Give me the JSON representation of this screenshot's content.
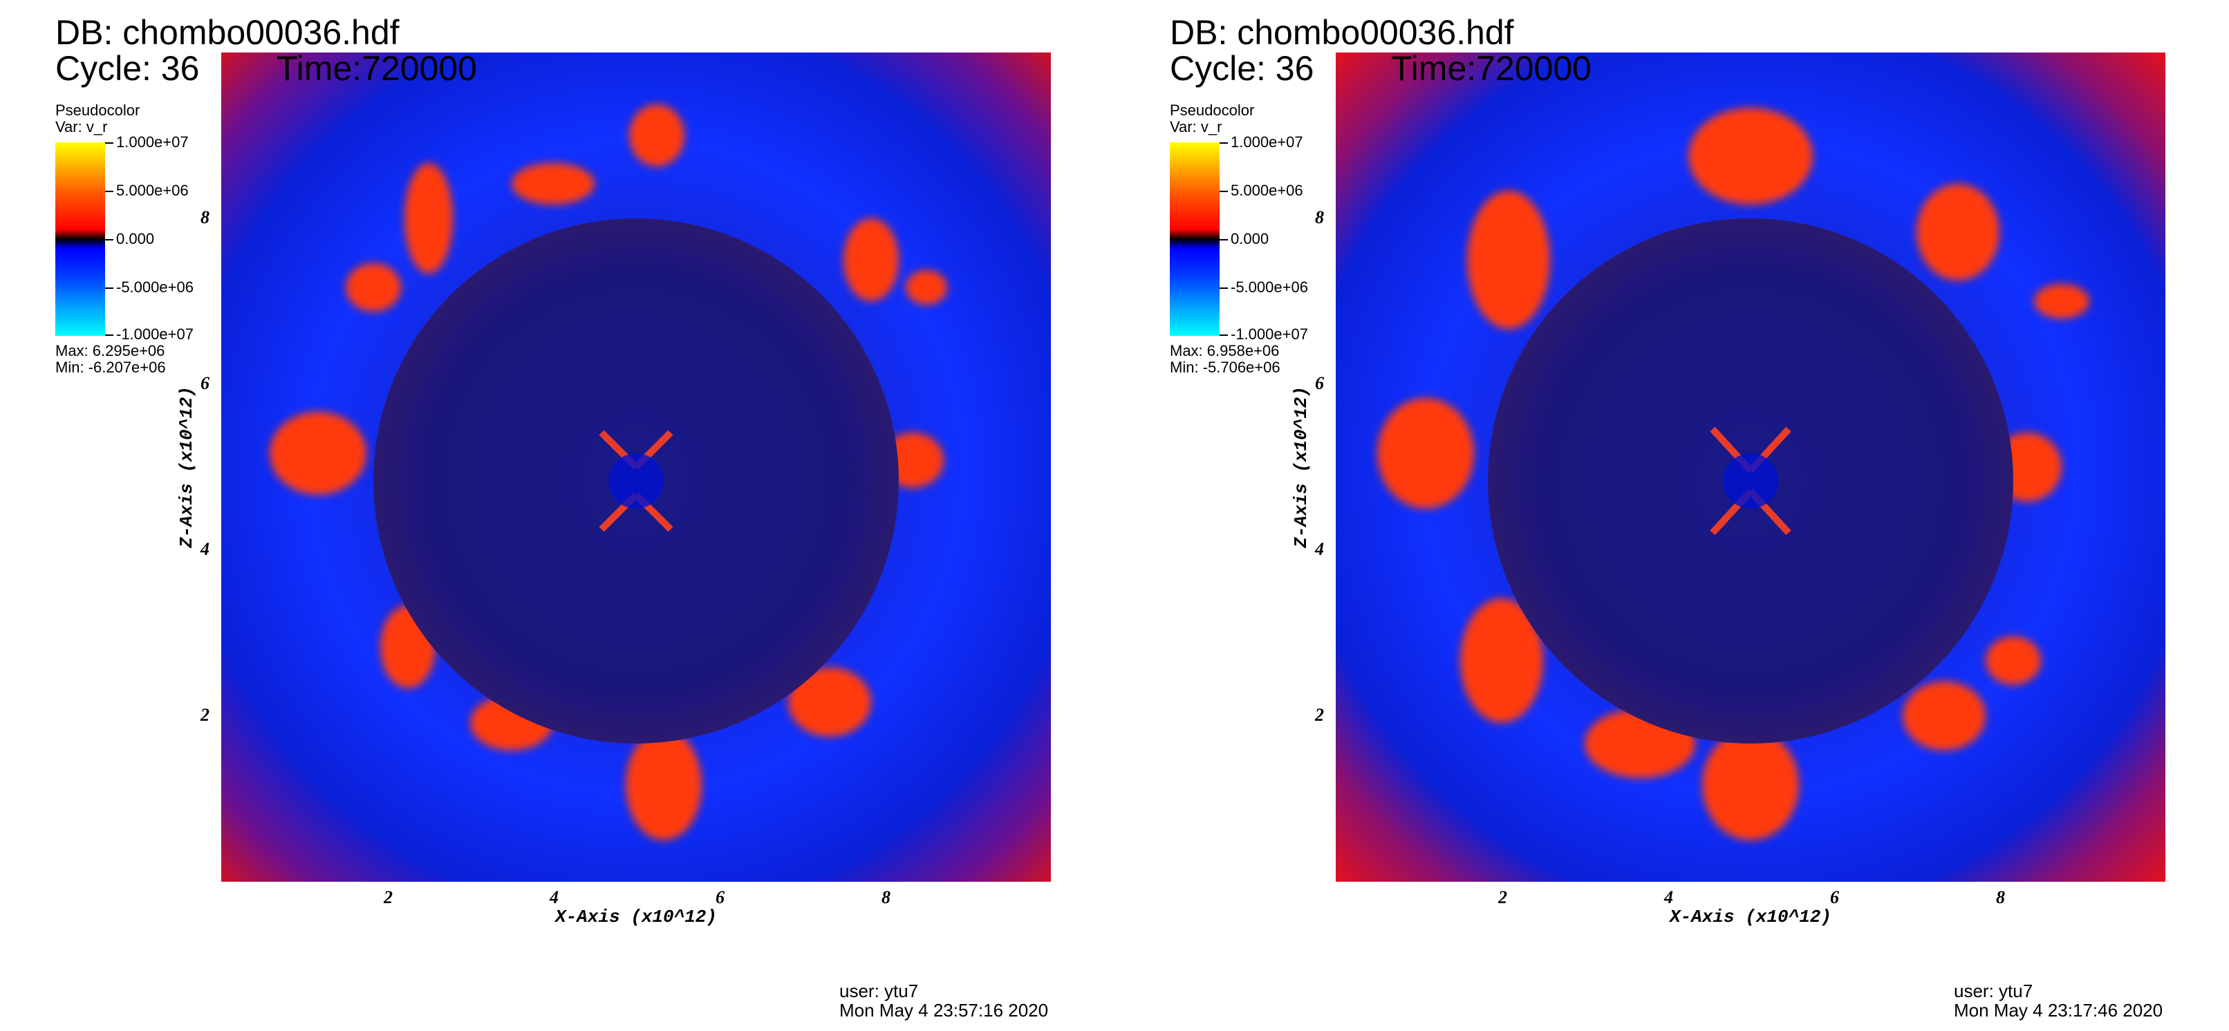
{
  "panels": [
    {
      "db_title": "DB: chombo00036.hdf",
      "cycle": "Cycle: 36",
      "time": "Time:720000",
      "legend": {
        "plot_type": "Pseudocolor",
        "var": "Var: v_r",
        "ticks": [
          "1.000e+07",
          "5.000e+06",
          "0.000",
          "-5.000e+06",
          "-1.000e+07"
        ],
        "max": "Max:  6.295e+06",
        "min": "Min: -6.207e+06"
      },
      "xlabel": "X-Axis (x10^12)",
      "ylabel": "Z-Axis (x10^12)",
      "x_ticks": [
        "2",
        "4",
        "6",
        "8"
      ],
      "y_ticks": [
        "8",
        "6",
        "4",
        "2"
      ],
      "user": "user: ytu7",
      "date": "Mon May  4 23:57:16 2020"
    },
    {
      "db_title": "DB: chombo00036.hdf",
      "cycle": "Cycle: 36",
      "time": "Time:720000",
      "legend": {
        "plot_type": "Pseudocolor",
        "var": "Var: v_r",
        "ticks": [
          "1.000e+07",
          "5.000e+06",
          "0.000",
          "-5.000e+06",
          "-1.000e+07"
        ],
        "max": "Max:  6.958e+06",
        "min": "Min: -5.706e+06"
      },
      "xlabel": "X-Axis (x10^12)",
      "ylabel": "Z-Axis (x10^12)",
      "x_ticks": [
        "2",
        "4",
        "6",
        "8"
      ],
      "y_ticks": [
        "8",
        "6",
        "4",
        "2"
      ],
      "user": "user: ytu7",
      "date": "Mon May  4 23:17:46 2020"
    }
  ],
  "colors": {
    "outer_blue": "#1030ff",
    "inner_navy": "#1a157a",
    "corner_red": "#e01010",
    "blob_orange": "#ff3a10",
    "core_blue": "#0010d0"
  }
}
